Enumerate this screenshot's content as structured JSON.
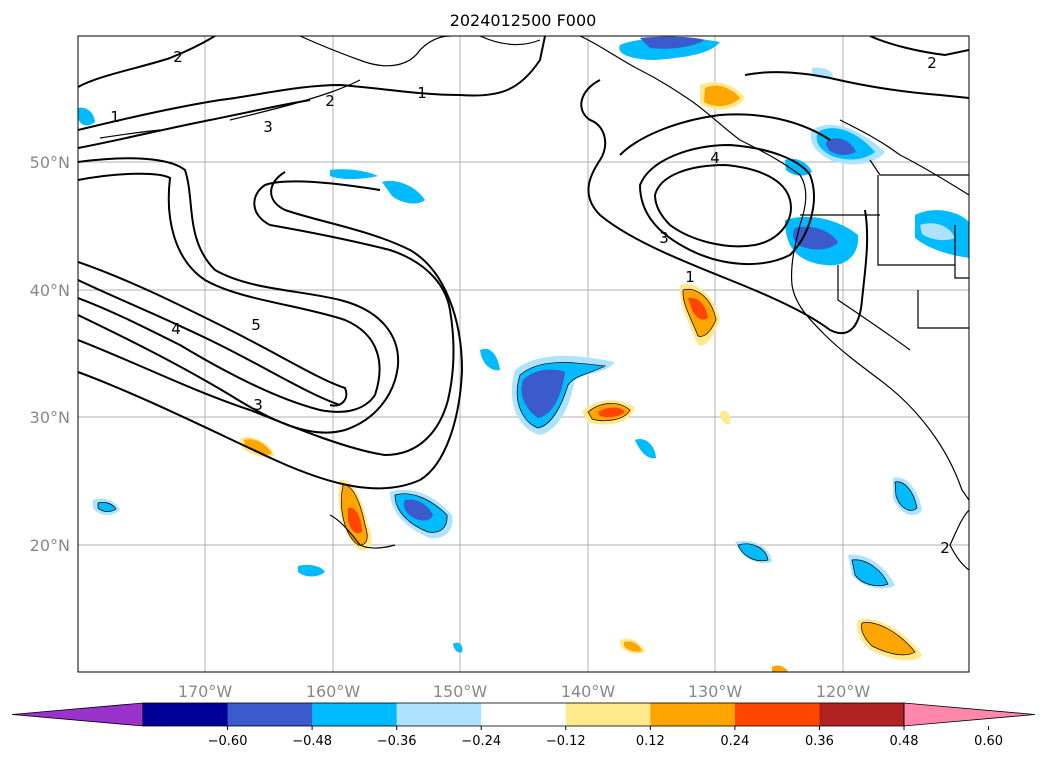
{
  "title": "2024012500 F000",
  "map": {
    "lat_labels": [
      "50°N",
      "40°N",
      "30°N",
      "20°N"
    ],
    "lon_labels": [
      "170°W",
      "160°W",
      "150°W",
      "140°W",
      "130°W",
      "120°W"
    ],
    "contour_labels": [
      "2",
      "2",
      "1",
      "2",
      "3",
      "4",
      "3",
      "1",
      "5",
      "4",
      "3",
      "2",
      "1"
    ]
  },
  "colorbar": {
    "ticks": [
      "−0.60",
      "−0.48",
      "−0.36",
      "−0.24",
      "−0.12",
      "0.12",
      "0.24",
      "0.36",
      "0.48",
      "0.60"
    ],
    "colors": [
      "#9933cc",
      "#000099",
      "#3b5bcc",
      "#00bbff",
      "#aee3ff",
      "#ffffff",
      "#ffe98c",
      "#ffa500",
      "#ff4500",
      "#b22222",
      "#ff88aa"
    ]
  }
}
